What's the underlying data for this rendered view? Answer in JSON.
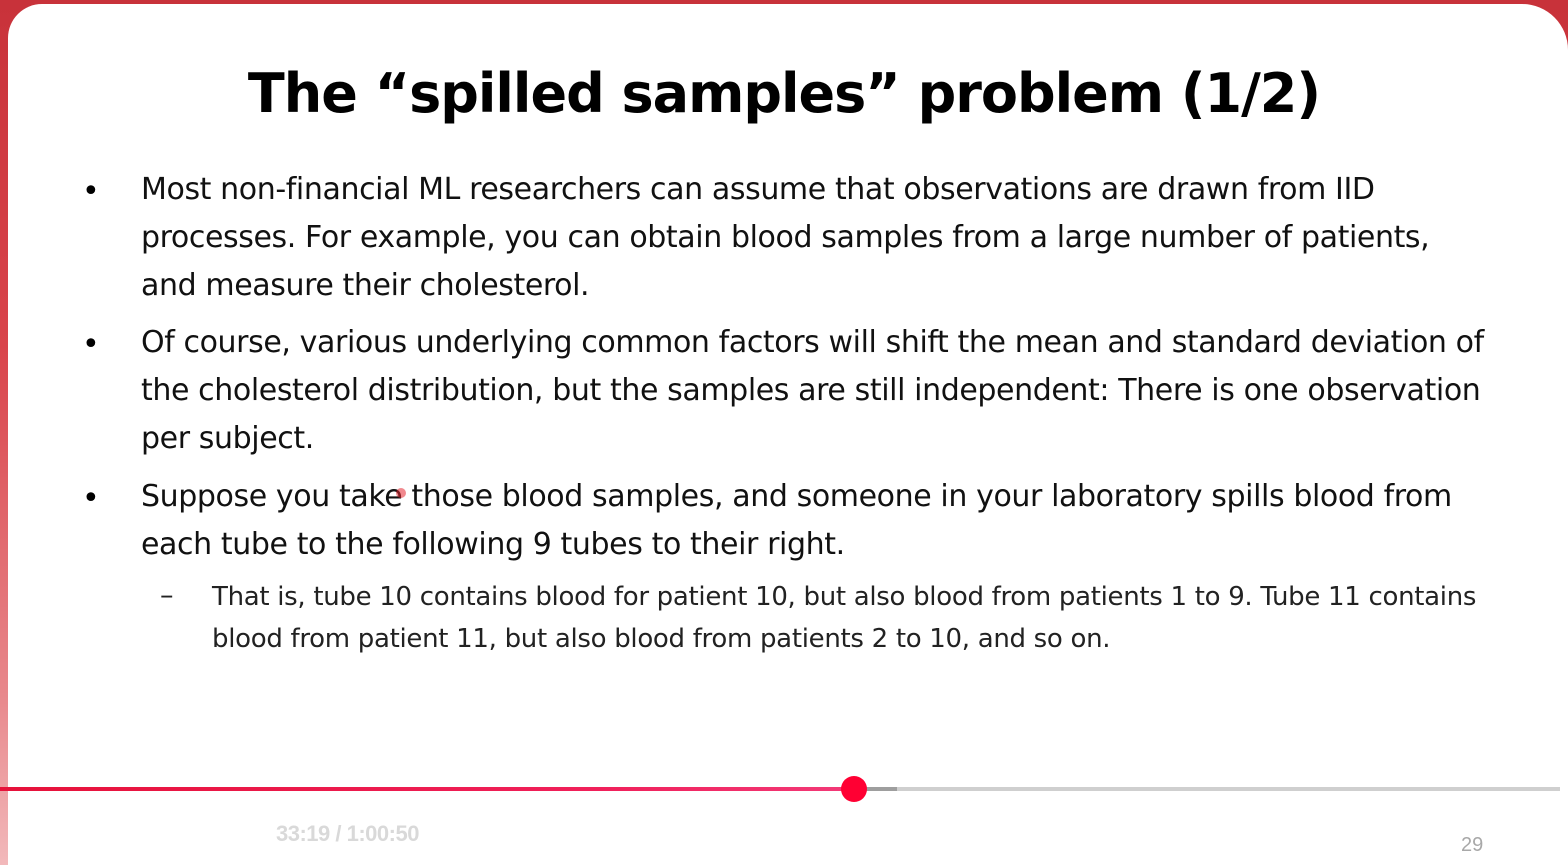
{
  "slide": {
    "title": "The “spilled samples” problem (1/2)",
    "bullets": [
      {
        "marker": "•",
        "text": "Most non-financial ML researchers can assume that observations are drawn from IID processes. For example, you can obtain blood samples from a large number of patients, and measure their cholesterol."
      },
      {
        "marker": "•",
        "text": "Of course, various underlying common factors will shift the mean and standard deviation of the cholesterol distribution, but the samples are still independent: There is one observation per subject."
      },
      {
        "marker": "•",
        "text": "Suppose you take those blood samples, and someone in your laboratory spills blood from each tube to the following 9 tubes to their right."
      }
    ],
    "sub_bullet": {
      "marker": "–",
      "text": "That is, tube 10 contains blood for patient 10, but also blood from patients 1 to 9. Tube 11 contains blood from patient 11, but also blood from patients 2 to 10, and so on."
    },
    "page_number": "29"
  },
  "player": {
    "time_display": "33:19 / 1:00:50",
    "played_fraction": 0.5475,
    "buffered_fraction": 0.575,
    "played_color": "#e6123a",
    "thumb_color": "#ff0033"
  }
}
